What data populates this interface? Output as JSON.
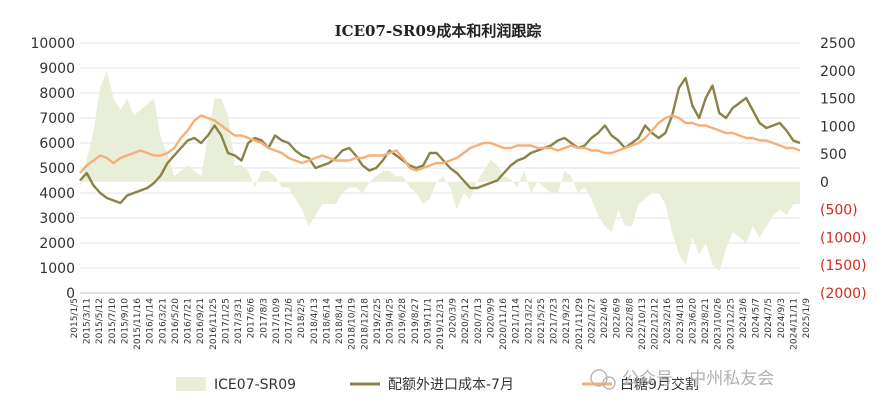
{
  "chart_data": {
    "type": "line",
    "title": "ICE07-SR09成本和利润跟踪",
    "y_left": {
      "range": [
        0,
        10000
      ],
      "ticks": [
        "0",
        "1000",
        "2000",
        "3000",
        "4000",
        "5000",
        "6000",
        "7000",
        "8000",
        "9000",
        "10000"
      ]
    },
    "y_right": {
      "range": [
        -2000,
        2500
      ],
      "ticks": [
        "(2000)",
        "(1500)",
        "(1000)",
        "(500)",
        "0",
        "500",
        "1000",
        "1500",
        "2000",
        "2500"
      ]
    },
    "x_labels": [
      "2015/1/5",
      "2015/3/11",
      "2015/5/12",
      "2015/7/10",
      "2015/9/10",
      "2015/11/16",
      "2016/1/14",
      "2016/3/21",
      "2016/5/20",
      "2016/7/21",
      "2016/9/21",
      "2016/11/25",
      "2017/1/25",
      "2017/3/31",
      "2017/6/6",
      "2017/8/3",
      "2017/10/9",
      "2017/12/6",
      "2018/2/5",
      "2018/4/13",
      "2018/6/14",
      "2018/8/14",
      "2018/10/19",
      "2018/12/18",
      "2019/2/25",
      "2019/4/25",
      "2019/6/28",
      "2019/8/27",
      "2019/11/1",
      "2019/12/31",
      "2020/3/9",
      "2020/5/12",
      "2020/7/13",
      "2020/9/9",
      "2020/11/16",
      "2021/1/14",
      "2021/3/22",
      "2021/5/25",
      "2021/7/23",
      "2021/9/23",
      "2021/11/29",
      "2022/1/27",
      "2022/4/6",
      "2022/6/9",
      "2022/8/8",
      "2022/10/13",
      "2022/12/12",
      "2023/2/16",
      "2023/4/18",
      "2023/6/20",
      "2023/8/21",
      "2023/10/26",
      "2023/12/25",
      "2024/3/6",
      "2024/5/7",
      "2024/7/5",
      "2024/9/3",
      "2024/11/11",
      "2025/1/9"
    ],
    "series": [
      {
        "name": "ICE07-SR09",
        "kind": "area",
        "axis": "right",
        "color": "#e8eed8",
        "values": [
          -100,
          400,
          900,
          1700,
          2000,
          1500,
          1300,
          1500,
          1200,
          1300,
          1400,
          1500,
          800,
          500,
          100,
          200,
          300,
          200,
          100,
          800,
          1500,
          1500,
          1200,
          300,
          300,
          200,
          -100,
          200,
          200,
          100,
          -100,
          -100,
          -300,
          -500,
          -800,
          -600,
          -400,
          -400,
          -400,
          -200,
          -100,
          -100,
          -200,
          0,
          100,
          200,
          200,
          100,
          100,
          -100,
          -200,
          -400,
          -300,
          0,
          100,
          -100,
          -500,
          -200,
          -300,
          0,
          200,
          400,
          300,
          100,
          50,
          -100,
          200,
          -200,
          0,
          -100,
          -200,
          -200,
          200,
          100,
          -200,
          -100,
          -300,
          -600,
          -800,
          -900,
          -500,
          -800,
          -800,
          -400,
          -300,
          -200,
          -200,
          -400,
          -900,
          -1300,
          -1500,
          -1000,
          -1300,
          -1100,
          -1500,
          -1600,
          -1200,
          -900,
          -1000,
          -1100,
          -800,
          -1000,
          -800,
          -600,
          -500,
          -600,
          -400,
          -400
        ]
      },
      {
        "name": "配额外进口成本-7月",
        "kind": "line",
        "axis": "left",
        "color": "#8a8348",
        "values": [
          4500,
          4800,
          4300,
          4000,
          3800,
          3700,
          3600,
          3900,
          4000,
          4100,
          4200,
          4400,
          4700,
          5200,
          5500,
          5800,
          6100,
          6200,
          6000,
          6300,
          6700,
          6300,
          5600,
          5500,
          5300,
          6000,
          6200,
          6100,
          5800,
          6300,
          6100,
          6000,
          5700,
          5500,
          5400,
          5000,
          5100,
          5200,
          5400,
          5700,
          5800,
          5500,
          5100,
          4900,
          5000,
          5300,
          5700,
          5500,
          5300,
          5100,
          5000,
          5100,
          5600,
          5600,
          5300,
          5000,
          4800,
          4500,
          4200,
          4200,
          4300,
          4400,
          4500,
          4800,
          5100,
          5300,
          5400,
          5600,
          5700,
          5800,
          5900,
          6100,
          6200,
          6000,
          5800,
          5900,
          6200,
          6400,
          6700,
          6300,
          6100,
          5800,
          6000,
          6200,
          6700,
          6400,
          6200,
          6400,
          7100,
          8200,
          8600,
          7500,
          7000,
          7800,
          8300,
          7200,
          7000,
          7400,
          7600,
          7800,
          7300,
          6800,
          6600,
          6700,
          6800,
          6500,
          6100,
          6000
        ]
      },
      {
        "name": "白糖9月交割",
        "kind": "line",
        "axis": "left",
        "color": "#f5b07a",
        "values": [
          4800,
          5100,
          5300,
          5500,
          5400,
          5200,
          5400,
          5500,
          5600,
          5700,
          5600,
          5500,
          5500,
          5600,
          5800,
          6200,
          6500,
          6900,
          7100,
          7000,
          6900,
          6700,
          6500,
          6300,
          6300,
          6200,
          6100,
          6000,
          5800,
          5700,
          5600,
          5400,
          5300,
          5200,
          5300,
          5400,
          5500,
          5400,
          5300,
          5300,
          5300,
          5400,
          5400,
          5500,
          5500,
          5500,
          5600,
          5700,
          5400,
          5000,
          4900,
          5000,
          5100,
          5200,
          5200,
          5300,
          5400,
          5600,
          5800,
          5900,
          6000,
          6000,
          5900,
          5800,
          5800,
          5900,
          5900,
          5900,
          5800,
          5800,
          5800,
          5700,
          5800,
          5900,
          5800,
          5800,
          5700,
          5700,
          5600,
          5600,
          5700,
          5800,
          5900,
          6000,
          6200,
          6500,
          6800,
          7000,
          7100,
          7000,
          6800,
          6800,
          6700,
          6700,
          6600,
          6500,
          6400,
          6400,
          6300,
          6200,
          6200,
          6100,
          6100,
          6000,
          5900,
          5800,
          5800,
          5700
        ]
      }
    ],
    "legend_position": "bottom",
    "grid": "horizontal"
  },
  "watermark": {
    "text": "公众号 · 中州私友会"
  }
}
